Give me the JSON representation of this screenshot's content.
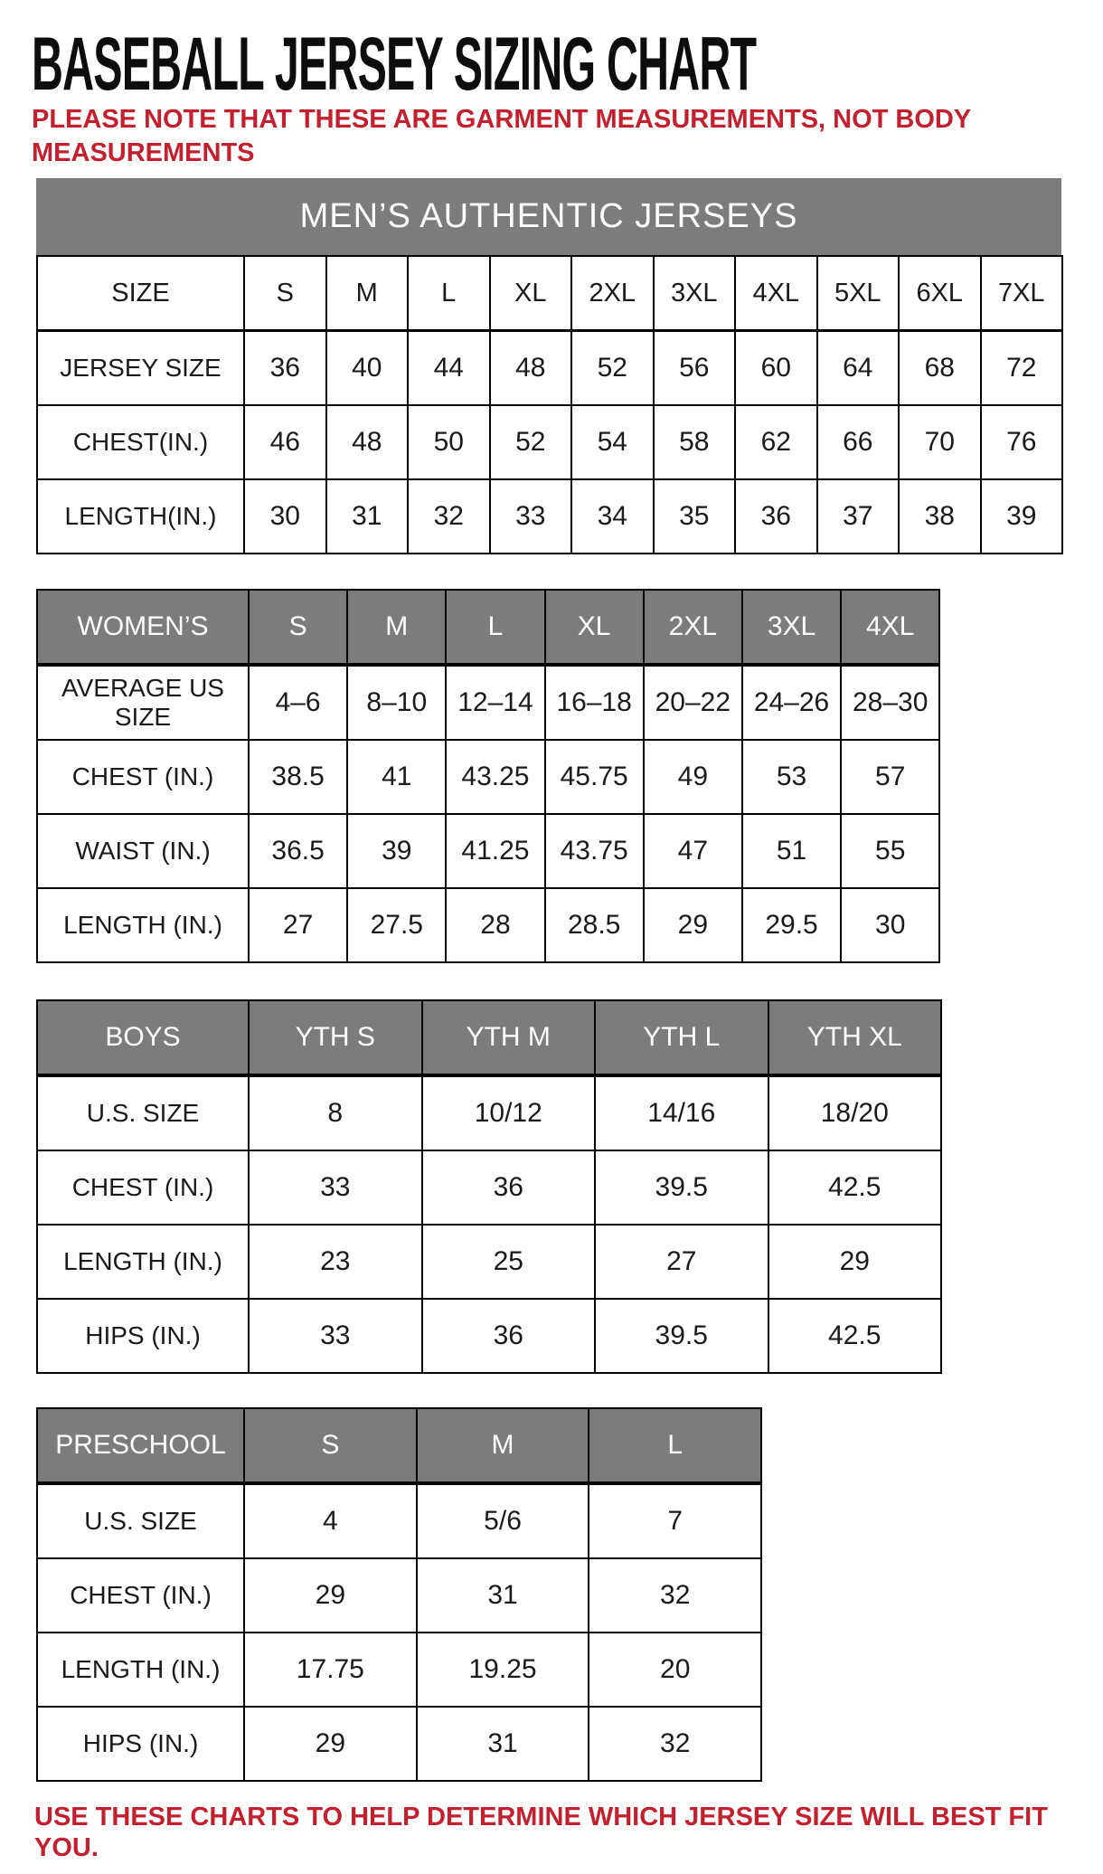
{
  "page": {
    "title": "BASEBALL JERSEY SIZING CHART",
    "note_line1": "PLEASE NOTE THAT THESE ARE GARMENT MEASUREMENTS, NOT BODY",
    "note_line2": "MEASUREMENTS",
    "footer": "USE THESE CHARTS TO HELP DETERMINE WHICH JERSEY SIZE WILL BEST FIT YOU.",
    "colors": {
      "accent_red": "#c3202f",
      "header_gray": "#7c7c7c",
      "header_text": "#ffffff",
      "border_black": "#000000"
    }
  },
  "tables": {
    "mens": {
      "banner": "MEN’S AUTHENTIC JERSEYS",
      "header": [
        "SIZE",
        "S",
        "M",
        "L",
        "XL",
        "2XL",
        "3XL",
        "4XL",
        "5XL",
        "6XL",
        "7XL"
      ],
      "rows": [
        {
          "label": "JERSEY SIZE",
          "values": [
            "36",
            "40",
            "44",
            "48",
            "52",
            "56",
            "60",
            "64",
            "68",
            "72"
          ]
        },
        {
          "label": "CHEST(IN.)",
          "values": [
            "46",
            "48",
            "50",
            "52",
            "54",
            "58",
            "62",
            "66",
            "70",
            "76"
          ]
        },
        {
          "label": "LENGTH(IN.)",
          "values": [
            "30",
            "31",
            "32",
            "33",
            "34",
            "35",
            "36",
            "37",
            "38",
            "39"
          ]
        }
      ]
    },
    "womens": {
      "header": [
        "WOMEN’S",
        "S",
        "M",
        "L",
        "XL",
        "2XL",
        "3XL",
        "4XL"
      ],
      "rows": [
        {
          "label": "AVERAGE US SIZE",
          "values": [
            "4–6",
            "8–10",
            "12–14",
            "16–18",
            "20–22",
            "24–26",
            "28–30"
          ]
        },
        {
          "label": "CHEST (IN.)",
          "values": [
            "38.5",
            "41",
            "43.25",
            "45.75",
            "49",
            "53",
            "57"
          ]
        },
        {
          "label": "WAIST (IN.)",
          "values": [
            "36.5",
            "39",
            "41.25",
            "43.75",
            "47",
            "51",
            "55"
          ]
        },
        {
          "label": "LENGTH (IN.)",
          "values": [
            "27",
            "27.5",
            "28",
            "28.5",
            "29",
            "29.5",
            "30"
          ]
        }
      ]
    },
    "boys": {
      "header": [
        "BOYS",
        "YTH S",
        "YTH M",
        "YTH L",
        "YTH XL"
      ],
      "rows": [
        {
          "label": "U.S. SIZE",
          "values": [
            "8",
            "10/12",
            "14/16",
            "18/20"
          ]
        },
        {
          "label": "CHEST (IN.)",
          "values": [
            "33",
            "36",
            "39.5",
            "42.5"
          ]
        },
        {
          "label": "LENGTH (IN.)",
          "values": [
            "23",
            "25",
            "27",
            "29"
          ]
        },
        {
          "label": "HIPS (IN.)",
          "values": [
            "33",
            "36",
            "39.5",
            "42.5"
          ]
        }
      ]
    },
    "preschool": {
      "header": [
        "PRESCHOOL",
        "S",
        "M",
        "L"
      ],
      "rows": [
        {
          "label": "U.S. SIZE",
          "values": [
            "4",
            "5/6",
            "7"
          ]
        },
        {
          "label": "CHEST (IN.)",
          "values": [
            "29",
            "31",
            "32"
          ]
        },
        {
          "label": "LENGTH (IN.)",
          "values": [
            "17.75",
            "19.25",
            "20"
          ]
        },
        {
          "label": "HIPS (IN.)",
          "values": [
            "29",
            "31",
            "32"
          ]
        }
      ]
    }
  }
}
